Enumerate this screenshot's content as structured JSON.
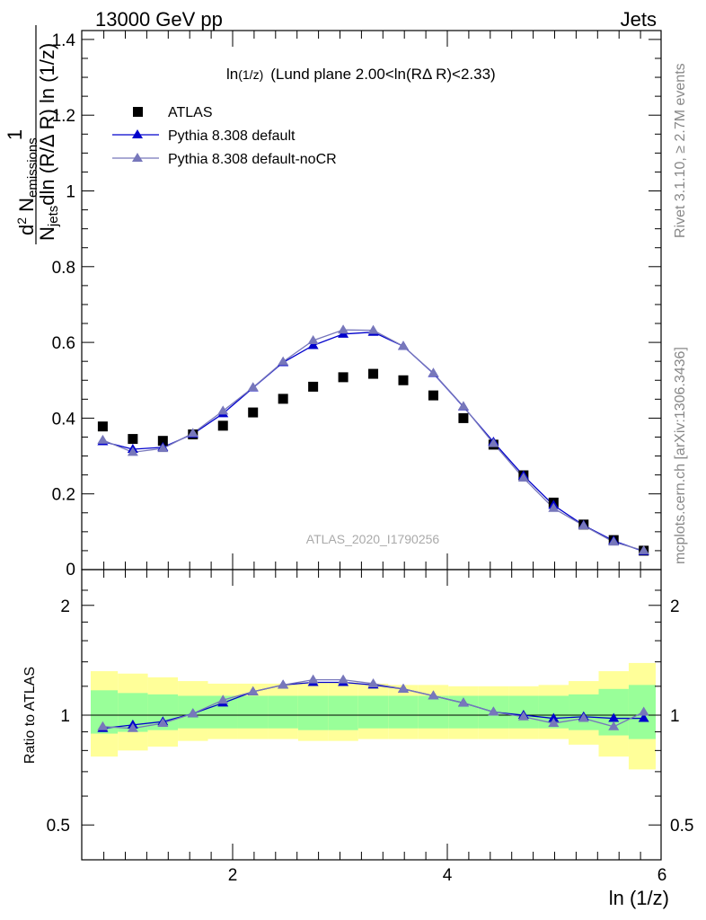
{
  "header": {
    "left": "13000 GeV pp",
    "right": "Jets"
  },
  "side_labels": {
    "rivet": "Rivet 3.1.10, ≥ 2.7M events",
    "mcplots": "mcplots.cern.ch [arXiv:1306.3436]"
  },
  "chart_data": [
    {
      "type": "scatter",
      "panel": "main",
      "title": "ln(1/z) (Lund plane 2.00<ln(RΔ R)<2.33)",
      "title_main": "ln",
      "title_sub": "(1/z)",
      "title_rest": "(Lund plane 2.00<ln(RΔ R)<2.33)",
      "watermark": "ATLAS_2020_I1790256",
      "ylabel": "1/N_jets d²N_emissions / dln(R/ΔR) ln(1/z)",
      "ylabel_parts": {
        "one": "1",
        "top_a": "d",
        "top_sup": "2",
        "top_b": " N",
        "top_sub": "emissions",
        "bot_a": "N",
        "bot_sub": "jets",
        "bot_b": "dln (R/Δ R) ln (1/z)"
      },
      "xlim": [
        0.656,
        6.0
      ],
      "ylim": [
        0.0,
        1.42
      ],
      "yticks": [
        0.2,
        0.4,
        0.6,
        0.8,
        1.0,
        1.2,
        1.4
      ],
      "ytick_labels": [
        "0.2",
        "0.4",
        "0.6",
        "0.8",
        "1",
        "1.2",
        "1.4"
      ],
      "y_partial_label": "0",
      "x": [
        0.79,
        1.07,
        1.35,
        1.63,
        1.91,
        2.19,
        2.47,
        2.75,
        3.03,
        3.31,
        3.59,
        3.87,
        4.15,
        4.43,
        4.71,
        4.99,
        5.27,
        5.55,
        5.83
      ],
      "series": [
        {
          "name": "ATLAS",
          "marker": "square",
          "color": "#000000",
          "values": [
            0.378,
            0.345,
            0.34,
            0.357,
            0.38,
            0.415,
            0.451,
            0.483,
            0.508,
            0.517,
            0.5,
            0.46,
            0.4,
            0.33,
            0.249,
            0.177,
            0.119,
            0.078,
            0.05
          ]
        },
        {
          "name": "Pythia 8.308 default",
          "marker": "triangle",
          "color": "#0000cc",
          "values": [
            0.338,
            0.318,
            0.323,
            0.358,
            0.412,
            0.48,
            0.547,
            0.592,
            0.622,
            0.627,
            0.59,
            0.518,
            0.43,
            0.337,
            0.248,
            0.17,
            0.117,
            0.076,
            0.048
          ]
        },
        {
          "name": "Pythia 8.308 default-noCR",
          "marker": "triangle",
          "color": "#7777bb",
          "values": [
            0.342,
            0.31,
            0.32,
            0.36,
            0.419,
            0.481,
            0.549,
            0.605,
            0.633,
            0.632,
            0.59,
            0.519,
            0.431,
            0.333,
            0.242,
            0.162,
            0.116,
            0.073,
            0.05
          ]
        }
      ]
    },
    {
      "type": "line",
      "panel": "ratio",
      "ylabel": "Ratio to ATLAS",
      "xlabel": "ln (1/z)",
      "log_y": true,
      "ylim": [
        0.4,
        2.4
      ],
      "yticks": [
        0.5,
        1,
        2
      ],
      "ytick_labels": [
        "0.5",
        "1",
        "2"
      ],
      "xticks": [
        2,
        4,
        6
      ],
      "xtick_labels": [
        "2",
        "4",
        "6"
      ],
      "x_edges": [
        0.65,
        0.93,
        1.21,
        1.49,
        1.77,
        2.05,
        2.33,
        2.61,
        2.89,
        3.17,
        3.45,
        3.73,
        4.01,
        4.29,
        4.57,
        4.85,
        5.13,
        5.41,
        5.69,
        5.97
      ],
      "x": [
        0.79,
        1.07,
        1.35,
        1.63,
        1.91,
        2.19,
        2.47,
        2.75,
        3.03,
        3.31,
        3.59,
        3.87,
        4.15,
        4.43,
        4.71,
        4.99,
        5.27,
        5.55,
        5.83
      ],
      "bands": {
        "stat_color": "#99ff99",
        "total_color": "#ffff99",
        "stat_lo": [
          0.89,
          0.9,
          0.91,
          0.92,
          0.92,
          0.92,
          0.92,
          0.91,
          0.91,
          0.92,
          0.92,
          0.92,
          0.92,
          0.92,
          0.92,
          0.92,
          0.91,
          0.88,
          0.86
        ],
        "stat_hi": [
          1.17,
          1.15,
          1.14,
          1.13,
          1.13,
          1.13,
          1.13,
          1.13,
          1.13,
          1.13,
          1.13,
          1.13,
          1.13,
          1.13,
          1.13,
          1.13,
          1.14,
          1.18,
          1.21
        ],
        "total_lo": [
          0.77,
          0.8,
          0.82,
          0.85,
          0.86,
          0.86,
          0.86,
          0.85,
          0.85,
          0.86,
          0.86,
          0.86,
          0.86,
          0.86,
          0.86,
          0.86,
          0.83,
          0.77,
          0.71
        ],
        "total_hi": [
          1.32,
          1.3,
          1.27,
          1.24,
          1.22,
          1.22,
          1.22,
          1.23,
          1.23,
          1.22,
          1.21,
          1.21,
          1.2,
          1.2,
          1.2,
          1.21,
          1.24,
          1.32,
          1.39
        ]
      },
      "series": [
        {
          "name": "Pythia 8.308 default",
          "color": "#0000cc",
          "values": [
            0.92,
            0.94,
            0.96,
            1.01,
            1.08,
            1.16,
            1.21,
            1.23,
            1.23,
            1.21,
            1.18,
            1.13,
            1.08,
            1.02,
            1.0,
            0.98,
            0.99,
            0.98,
            0.98
          ]
        },
        {
          "name": "Pythia 8.308 default-noCR",
          "color": "#7777bb",
          "values": [
            0.93,
            0.92,
            0.95,
            1.01,
            1.1,
            1.16,
            1.21,
            1.25,
            1.25,
            1.22,
            1.18,
            1.13,
            1.08,
            1.02,
            0.99,
            0.95,
            0.98,
            0.93,
            1.02
          ]
        }
      ]
    }
  ]
}
